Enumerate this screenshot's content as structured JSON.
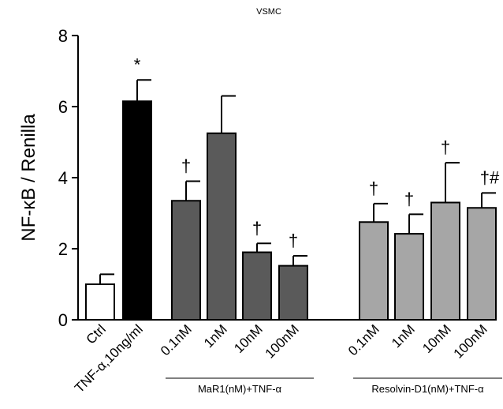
{
  "chart_data": {
    "type": "bar",
    "title": "VSMC",
    "ylabel": "NF-κB / Renilla",
    "xlabel": "",
    "ylim": [
      0,
      8
    ],
    "yticks": [
      0,
      2,
      4,
      6,
      8
    ],
    "grid": false,
    "categories": [
      "Ctrl",
      "TNF-α,10ng/ml",
      "0.1nM",
      "1nM",
      "10nM",
      "100nM",
      "0.1nM",
      "1nM",
      "10nM",
      "100nM"
    ],
    "values": [
      1.0,
      6.15,
      3.35,
      5.25,
      1.9,
      1.52,
      2.75,
      2.42,
      3.3,
      3.15
    ],
    "errors": [
      0.28,
      0.6,
      0.55,
      1.05,
      0.25,
      0.28,
      0.52,
      0.55,
      1.12,
      0.42
    ],
    "colors": [
      "#ffffff",
      "#000000",
      "#5a5a5a",
      "#5a5a5a",
      "#5a5a5a",
      "#5a5a5a",
      "#a6a6a6",
      "#a6a6a6",
      "#a6a6a6",
      "#a6a6a6"
    ],
    "annotations": [
      "",
      "*",
      "†",
      "",
      "†",
      "†",
      "†",
      "†",
      "†",
      "†#"
    ],
    "groups": [
      {
        "label": "MaR1(nM)+TNF-α",
        "from": 2,
        "to": 5
      },
      {
        "label": "Resolvin-D1(nM)+TNF-α",
        "from": 6,
        "to": 9
      }
    ]
  }
}
